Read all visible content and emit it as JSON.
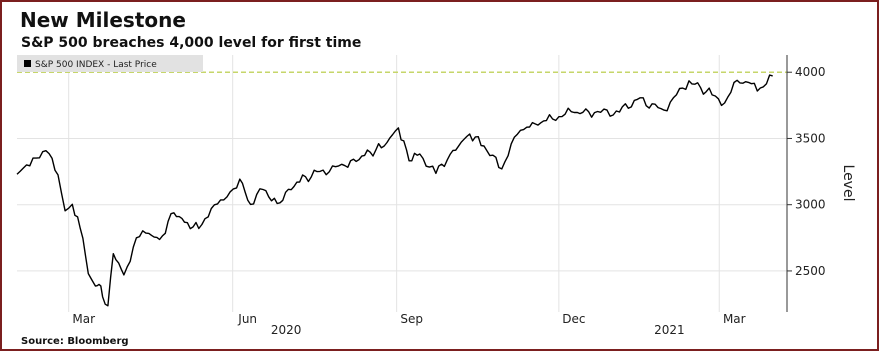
{
  "title": "New Milestone",
  "subtitle": "S&P 500 breaches 4,000 level for first time",
  "source": "Source: Bloomberg",
  "chart_data": {
    "type": "line",
    "legend": "S&P 500 INDEX - Last Price",
    "legend_position": "top-left",
    "ylabel": "Level",
    "xlabel": "",
    "y_ticks": [
      2500,
      3000,
      3500,
      4000
    ],
    "ylim": [
      2190,
      4130
    ],
    "x_month_ticks": [
      "Mar",
      "Jun",
      "Sep",
      "Dec",
      "Mar"
    ],
    "x_year_labels": [
      "2020",
      "2021"
    ],
    "threshold_line": 4000,
    "grid": true,
    "series": [
      {
        "name": "S&P 500 INDEX - Last Price",
        "color": "#000000",
        "x": [
          "2020-02-01",
          "2020-02-10",
          "2020-02-19",
          "2020-02-24",
          "2020-02-28",
          "2020-03-03",
          "2020-03-09",
          "2020-03-12",
          "2020-03-16",
          "2020-03-18",
          "2020-03-20",
          "2020-03-23",
          "2020-03-26",
          "2020-04-01",
          "2020-04-08",
          "2020-04-15",
          "2020-04-21",
          "2020-04-29",
          "2020-05-05",
          "2020-05-13",
          "2020-05-20",
          "2020-05-27",
          "2020-06-05",
          "2020-06-11",
          "2020-06-18",
          "2020-06-26",
          "2020-07-07",
          "2020-07-20",
          "2020-08-03",
          "2020-08-14",
          "2020-08-25",
          "2020-09-02",
          "2020-09-08",
          "2020-09-14",
          "2020-09-23",
          "2020-10-01",
          "2020-10-12",
          "2020-10-20",
          "2020-10-30",
          "2020-11-06",
          "2020-11-13",
          "2020-11-24",
          "2020-12-08",
          "2020-12-21",
          "2021-01-04",
          "2021-01-14",
          "2021-01-29",
          "2021-02-12",
          "2021-02-25",
          "2021-03-04",
          "2021-03-11",
          "2021-03-19",
          "2021-03-24",
          "2021-03-31"
        ],
        "values": [
          3230,
          3352,
          3386,
          3225,
          2954,
          3003,
          2746,
          2480,
          2386,
          2398,
          2305,
          2237,
          2630,
          2470,
          2750,
          2783,
          2737,
          2939,
          2868,
          2820,
          2971,
          3036,
          3193,
          3002,
          3115,
          3009,
          3170,
          3251,
          3294,
          3372,
          3443,
          3580,
          3331,
          3383,
          3236,
          3380,
          3534,
          3443,
          3270,
          3509,
          3585,
          3635,
          3702,
          3695,
          3700,
          3795,
          3714,
          3935,
          3829,
          3768,
          3939,
          3913,
          3881,
          3972
        ]
      }
    ]
  }
}
